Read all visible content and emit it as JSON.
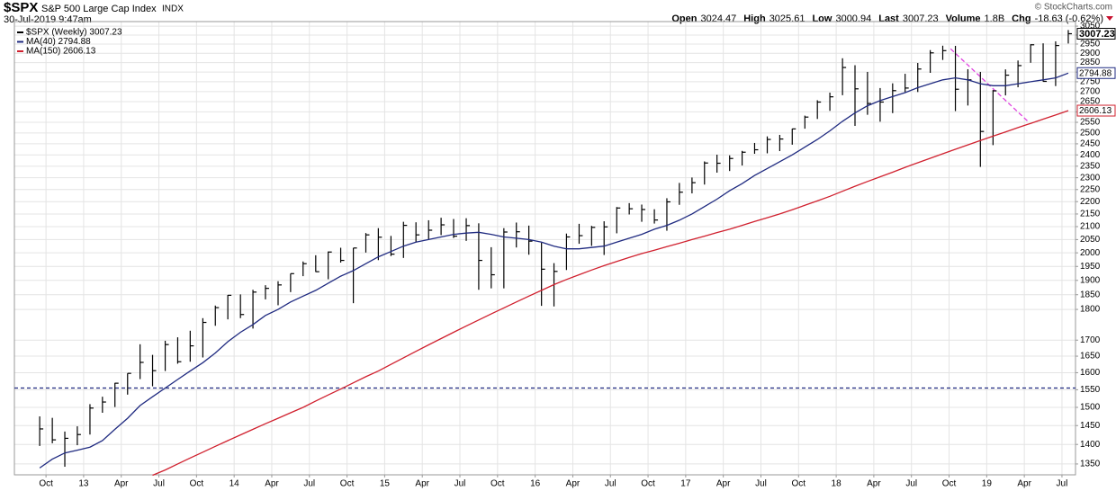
{
  "header": {
    "symbol": "$SPX",
    "name": "S&P 500 Large Cap Index",
    "exchange": "INDX",
    "date": "30-Jul-2019 9:47am",
    "copyright": "© StockCharts.com",
    "quote": [
      {
        "label": "Open",
        "value": "3024.47"
      },
      {
        "label": "High",
        "value": "3025.61"
      },
      {
        "label": "Low",
        "value": "3000.94"
      },
      {
        "label": "Last",
        "value": "3007.23"
      },
      {
        "label": "Volume",
        "value": "1.8B"
      },
      {
        "label": "Chg",
        "value": "-18.63 (-0.62%)"
      }
    ]
  },
  "chart_data": {
    "type": "ohlc",
    "log_scale": true,
    "grid": true,
    "xlim": [
      2012.54,
      2019.59
    ],
    "ylim": [
      1323,
      3076
    ],
    "xticks": [
      {
        "value": 2012.75,
        "label": "Oct"
      },
      {
        "value": 2013,
        "label": "13"
      },
      {
        "value": 2013.25,
        "label": "Apr"
      },
      {
        "value": 2013.5,
        "label": "Jul"
      },
      {
        "value": 2013.75,
        "label": "Oct"
      },
      {
        "value": 2014,
        "label": "14"
      },
      {
        "value": 2014.25,
        "label": "Apr"
      },
      {
        "value": 2014.5,
        "label": "Jul"
      },
      {
        "value": 2014.75,
        "label": "Oct"
      },
      {
        "value": 2015,
        "label": "15"
      },
      {
        "value": 2015.25,
        "label": "Apr"
      },
      {
        "value": 2015.5,
        "label": "Jul"
      },
      {
        "value": 2015.75,
        "label": "Oct"
      },
      {
        "value": 2016,
        "label": "16"
      },
      {
        "value": 2016.25,
        "label": "Apr"
      },
      {
        "value": 2016.5,
        "label": "Jul"
      },
      {
        "value": 2016.75,
        "label": "Oct"
      },
      {
        "value": 2017,
        "label": "17"
      },
      {
        "value": 2017.25,
        "label": "Apr"
      },
      {
        "value": 2017.5,
        "label": "Jul"
      },
      {
        "value": 2017.75,
        "label": "Oct"
      },
      {
        "value": 2018,
        "label": "18"
      },
      {
        "value": 2018.25,
        "label": "Apr"
      },
      {
        "value": 2018.5,
        "label": "Jul"
      },
      {
        "value": 2018.75,
        "label": "Oct"
      },
      {
        "value": 2019,
        "label": "19"
      },
      {
        "value": 2019.25,
        "label": "Apr"
      },
      {
        "value": 2019.5,
        "label": "Jul"
      }
    ],
    "yticks": [
      1350,
      1400,
      1450,
      1500,
      1550,
      1600,
      1650,
      1700,
      1800,
      1850,
      1900,
      1950,
      2000,
      2050,
      2100,
      2150,
      2200,
      2250,
      2300,
      2350,
      2400,
      2450,
      2500,
      2550,
      2600,
      2650,
      2700,
      2750,
      2800,
      2850,
      2900,
      2950,
      3000,
      3050
    ],
    "x": [
      2012.708,
      2012.792,
      2012.875,
      2012.958,
      2013.042,
      2013.125,
      2013.208,
      2013.292,
      2013.375,
      2013.458,
      2013.542,
      2013.625,
      2013.708,
      2013.792,
      2013.875,
      2013.958,
      2014.042,
      2014.125,
      2014.208,
      2014.292,
      2014.375,
      2014.458,
      2014.542,
      2014.625,
      2014.708,
      2014.792,
      2014.875,
      2014.958,
      2015.042,
      2015.125,
      2015.208,
      2015.292,
      2015.375,
      2015.458,
      2015.542,
      2015.625,
      2015.708,
      2015.792,
      2015.875,
      2015.958,
      2016.042,
      2016.125,
      2016.208,
      2016.292,
      2016.375,
      2016.458,
      2016.542,
      2016.625,
      2016.708,
      2016.792,
      2016.875,
      2016.958,
      2017.042,
      2017.125,
      2017.208,
      2017.292,
      2017.375,
      2017.458,
      2017.542,
      2017.625,
      2017.708,
      2017.792,
      2017.875,
      2017.958,
      2018.042,
      2018.125,
      2018.208,
      2018.292,
      2018.375,
      2018.458,
      2018.542,
      2018.625,
      2018.708,
      2018.792,
      2018.875,
      2018.958,
      2019.042,
      2019.125,
      2019.208,
      2019.292,
      2019.375,
      2019.458,
      2019.542
    ],
    "series": [
      {
        "name": "$SPX (Weekly) 3007.23",
        "color": "#000000",
        "high": [
          1475,
          1471,
          1434,
          1448,
          1509,
          1530,
          1570,
          1598,
          1687,
          1654,
          1698,
          1709,
          1730,
          1771,
          1813,
          1849,
          1851,
          1867,
          1883,
          1897,
          1924,
          1968,
          1991,
          2005,
          2019,
          2018,
          2075,
          2094,
          2064,
          2119,
          2117,
          2125,
          2135,
          2130,
          2133,
          2113,
          2021,
          2094,
          2116,
          2104,
          2038,
          1962,
          2073,
          2111,
          2103,
          2121,
          2178,
          2194,
          2188,
          2169,
          2214,
          2278,
          2301,
          2371,
          2401,
          2398,
          2418,
          2454,
          2484,
          2491,
          2520,
          2582,
          2657,
          2695,
          2873,
          2836,
          2801,
          2718,
          2742,
          2791,
          2848,
          2917,
          2941,
          2940,
          2815,
          2801,
          2708,
          2814,
          2861,
          2949,
          2954,
          2965,
          3028
        ],
        "low": [
          1396,
          1403,
          1343,
          1398,
          1426,
          1485,
          1501,
          1536,
          1581,
          1560,
          1605,
          1627,
          1633,
          1646,
          1746,
          1767,
          1771,
          1737,
          1834,
          1814,
          1859,
          1915,
          1930,
          1904,
          1964,
          1821,
          2001,
          1973,
          1988,
          1981,
          2039,
          2049,
          2067,
          2056,
          2045,
          1867,
          1872,
          1872,
          2020,
          1993,
          1812,
          1810,
          1937,
          2034,
          2026,
          1992,
          2074,
          2148,
          2119,
          2112,
          2084,
          2187,
          2234,
          2271,
          2322,
          2329,
          2353,
          2405,
          2407,
          2417,
          2446,
          2520,
          2566,
          2605,
          2682,
          2533,
          2586,
          2553,
          2594,
          2698,
          2698,
          2796,
          2864,
          2604,
          2631,
          2347,
          2444,
          2681,
          2722,
          2849,
          2751,
          2728,
          2953
        ],
        "close": [
          1441,
          1412,
          1416,
          1426,
          1498,
          1515,
          1569,
          1598,
          1631,
          1606,
          1686,
          1633,
          1682,
          1757,
          1806,
          1848,
          1783,
          1859,
          1872,
          1884,
          1924,
          1960,
          1931,
          2003,
          1972,
          2018,
          2068,
          2059,
          1995,
          2105,
          2068,
          2086,
          2107,
          2063,
          2104,
          1972,
          1920,
          2079,
          2080,
          2044,
          1940,
          1932,
          2060,
          2065,
          2097,
          2099,
          2174,
          2171,
          2168,
          2126,
          2199,
          2239,
          2279,
          2364,
          2363,
          2384,
          2412,
          2423,
          2470,
          2472,
          2519,
          2575,
          2648,
          2674,
          2824,
          2714,
          2641,
          2648,
          2705,
          2718,
          2816,
          2902,
          2914,
          2712,
          2760,
          2507,
          2704,
          2784,
          2834,
          2946,
          2752,
          2942,
          3007.23
        ]
      },
      {
        "name": "MA(40) 2794.88",
        "color": "#1f2a80",
        "values": [
          1340,
          1362,
          1378,
          1385,
          1393,
          1410,
          1440,
          1470,
          1505,
          1530,
          1555,
          1580,
          1605,
          1630,
          1660,
          1695,
          1725,
          1750,
          1780,
          1800,
          1825,
          1845,
          1865,
          1890,
          1915,
          1935,
          1960,
          1985,
          2005,
          2025,
          2040,
          2050,
          2060,
          2070,
          2075,
          2078,
          2070,
          2060,
          2055,
          2050,
          2040,
          2025,
          2015,
          2015,
          2020,
          2025,
          2040,
          2055,
          2070,
          2090,
          2105,
          2125,
          2150,
          2180,
          2210,
          2245,
          2275,
          2310,
          2340,
          2370,
          2400,
          2435,
          2470,
          2510,
          2555,
          2595,
          2630,
          2655,
          2675,
          2695,
          2720,
          2740,
          2760,
          2770,
          2760,
          2740,
          2730,
          2730,
          2740,
          2750,
          2760,
          2770,
          2794.88
        ]
      },
      {
        "name": "MA(150) 2606.13",
        "color": "#d0202e",
        "values": [
          null,
          null,
          null,
          null,
          null,
          null,
          null,
          null,
          null,
          1322,
          1335,
          1350,
          1365,
          1380,
          1395,
          1410,
          1425,
          1440,
          1455,
          1470,
          1485,
          1500,
          1518,
          1535,
          1552,
          1570,
          1588,
          1605,
          1625,
          1645,
          1665,
          1685,
          1705,
          1725,
          1745,
          1765,
          1785,
          1805,
          1825,
          1845,
          1865,
          1885,
          1903,
          1920,
          1937,
          1953,
          1968,
          1983,
          1997,
          2010,
          2023,
          2036,
          2050,
          2063,
          2077,
          2090,
          2105,
          2120,
          2135,
          2150,
          2167,
          2185,
          2203,
          2222,
          2243,
          2264,
          2284,
          2304,
          2324,
          2345,
          2365,
          2385,
          2405,
          2425,
          2445,
          2465,
          2485,
          2505,
          2525,
          2545,
          2565,
          2585,
          2606.13
        ]
      }
    ],
    "price_tags": [
      {
        "value": 3007.23,
        "label": "3007.23",
        "color": "#000000"
      },
      {
        "value": 2794.88,
        "label": "2794.88",
        "color": "#1f2a80"
      },
      {
        "value": 2606.13,
        "label": "2606.13",
        "color": "#d0202e"
      }
    ],
    "hlines": [
      {
        "value": 1555,
        "color": "#1f2a80"
      }
    ],
    "trendline": {
      "x": [
        2018.76,
        2019.27
      ],
      "y": [
        2924,
        2557
      ],
      "color": "#e040e0"
    }
  }
}
